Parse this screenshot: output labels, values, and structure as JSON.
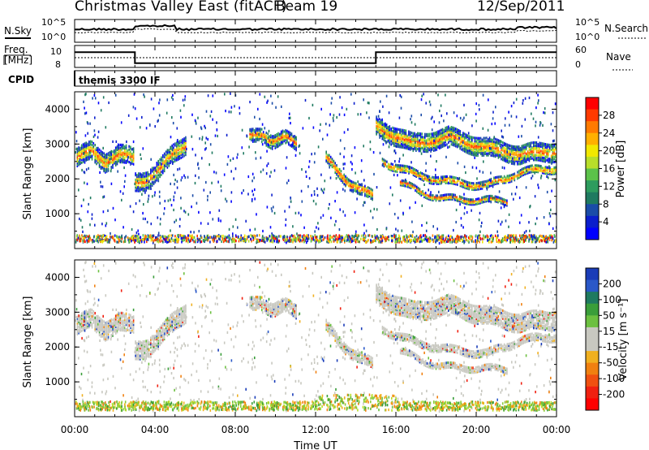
{
  "header": {
    "station": "Christmas Valley East (fitACF)",
    "beam": "Beam 19",
    "date": "12/Sep/2011"
  },
  "noise_panel": {
    "left_label": "N.Sky",
    "right_label": "N.Search",
    "left_ticks": [
      "10^5",
      "10^0"
    ],
    "right_ticks": [
      "10^5",
      "10^0"
    ]
  },
  "freq_panel": {
    "left_label_1": "Freq.",
    "left_label_2": "[MHz]",
    "left_ticks": [
      "10",
      "8"
    ],
    "right_label": "Nave",
    "right_ticks": [
      "60",
      "0"
    ]
  },
  "cpid": {
    "label": "CPID",
    "value": "themis 3300 IF"
  },
  "x_axis": {
    "label": "Time UT",
    "ticks": [
      "00:00",
      "04:00",
      "08:00",
      "12:00",
      "16:00",
      "20:00",
      "00:00"
    ]
  },
  "power_panel": {
    "ylabel": "Slant Range [km]",
    "yticks": [
      "4000",
      "3000",
      "2000",
      "1000"
    ],
    "colorbar_label": "Power [dB]",
    "colorbar_ticks": [
      "28",
      "24",
      "20",
      "16",
      "12",
      "8",
      "4"
    ],
    "colorbar_colors": [
      "#ff0000",
      "#ff3a00",
      "#ff7a00",
      "#ffb000",
      "#f2e800",
      "#b8de2a",
      "#5cc24a",
      "#2e9c5e",
      "#1f7a60",
      "#1a4ca8",
      "#0a1ecc",
      "#0000ff"
    ]
  },
  "velocity_panel": {
    "ylabel": "Slant Range [km]",
    "yticks": [
      "4000",
      "3000",
      "2000",
      "1000"
    ],
    "colorbar_label": "Velocity [m s⁻¹]",
    "colorbar_ticks": [
      "200",
      "100",
      "50",
      "15",
      "-15",
      "-50",
      "-100",
      "-200"
    ],
    "colorbar_colors": [
      "#1a3cb8",
      "#2a58c8",
      "#1f7a60",
      "#3a9e3a",
      "#6cc040",
      "#c8c8c0",
      "#c8c8c0",
      "#f0b020",
      "#f08010",
      "#f05010",
      "#f02010",
      "#ff0000"
    ]
  },
  "chart_data": {
    "type": "heatmap",
    "title": "Christmas Valley East (fitACF) Beam 19 12/Sep/2011",
    "xlabel": "Time UT",
    "ylabel": "Slant Range [km]",
    "xlim": [
      0,
      24
    ],
    "ylim": [
      0,
      4500
    ],
    "power_range_db": [
      0,
      30
    ],
    "velocity_range_ms": [
      -250,
      250
    ],
    "frequency_mhz_by_interval": [
      {
        "start": 0,
        "end": 3.0,
        "value": 10.2
      },
      {
        "start": 3.0,
        "end": 15.0,
        "value": 8.3
      },
      {
        "start": 15.0,
        "end": 24,
        "value": 10.2
      }
    ],
    "scatter_echo_regions": [
      {
        "name": "",
        "start": 0.1,
        "end": 2.9,
        "range_center_km": [
          2600,
          2800,
          2500,
          2700,
          2600
        ],
        "width_km": 500
      },
      {
        "name": "",
        "start": 3.0,
        "end": 5.5,
        "range_center_km": [
          1900,
          2000,
          2300,
          2700,
          3000
        ],
        "width_km": 500
      },
      {
        "name": "",
        "start": 8.7,
        "end": 11.0,
        "range_center_km": [
          3200,
          3300,
          3100,
          3200,
          3000
        ],
        "width_km": 400
      },
      {
        "name": "",
        "start": 12.5,
        "end": 14.8,
        "range_center_km": [
          2600,
          2200,
          1900,
          1700,
          1500
        ],
        "width_km": 300
      },
      {
        "name": "",
        "start": 15.0,
        "end": 24,
        "range_center_km": [
          3500,
          3000,
          3200,
          2900,
          2700,
          2800
        ],
        "width_km": 500
      },
      {
        "name": "",
        "start": 15.3,
        "end": 24,
        "range_center_km": [
          2500,
          2100,
          1900,
          1800,
          2200,
          2300
        ],
        "width_km": 180
      },
      {
        "name": "",
        "start": 16.2,
        "end": 21.5,
        "range_center_km": [
          1900,
          1600,
          1450,
          1400,
          1400,
          1350
        ],
        "width_km": 150
      }
    ]
  }
}
